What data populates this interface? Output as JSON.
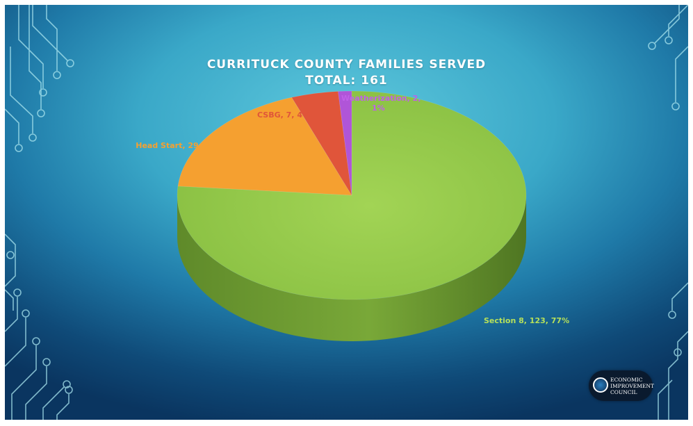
{
  "slide": {
    "title_line1": "CURRITUCK COUNTY FAMILIES SERVED",
    "title_line2": "TOTAL: 161",
    "logo": {
      "line1": "ECONOMIC",
      "line2": "IMPROVEMENT",
      "line3": "COUNCIL"
    }
  },
  "chart_data": {
    "type": "pie",
    "title": "CURRITUCK COUNTY FAMILIES SERVED",
    "subtitle": "TOTAL: 161",
    "style": "3d",
    "series": [
      {
        "name": "Section 8",
        "value": 123,
        "percent": 77,
        "label": "Section 8, 123, 77%",
        "color": "#8fc748",
        "label_color": "#b6e05a"
      },
      {
        "name": "Head Start",
        "value": 29,
        "percent": 18,
        "label": "Head Start, 29, 18%",
        "color": "#f5a030",
        "label_color": "#f5a030"
      },
      {
        "name": "CSBG",
        "value": 7,
        "percent": 4,
        "label": "CSBG, 7, 4%",
        "color": "#e0553a",
        "label_color": "#e0553a"
      },
      {
        "name": "Weatherization",
        "value": 2,
        "percent": 1,
        "label_line1": "Weatherization, 2,",
        "label_line2": "1%",
        "color": "#b055d8",
        "label_color": "#c060e8"
      }
    ]
  }
}
